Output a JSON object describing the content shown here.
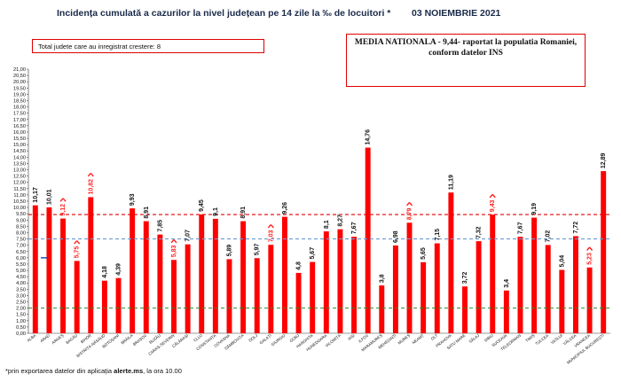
{
  "header": {
    "title": "Incidența cumulată a cazurilor la nivel județean pe 14 zile la ‰ de locuitori *",
    "date": "03 NOIEMBRIE 2021"
  },
  "info_box": {
    "text": "Total judete care au inregistrat crestere: 8"
  },
  "national_box": {
    "line1": "MEDIA NATIONALA - 9,44-  raportat la populatia Romaniei,",
    "line2": "conform datelor INS"
  },
  "footer": {
    "prefix": "*prin exportarea datelor din aplicația ",
    "bold": "alerte.ms",
    "suffix": ", la ora 10.00"
  },
  "colors": {
    "bar": "#ff0000",
    "increase_label": "#ff2020",
    "label": "#111111",
    "national_line": "#e00000",
    "blue_line": "#6a9bd1",
    "green_line": "#2e8b2e"
  },
  "chart_data": {
    "type": "bar",
    "categories": [
      "ALBA",
      "ARAD",
      "ARGEȘ",
      "BACĂU",
      "BIHOR",
      "BISTRIȚA-NĂSĂUD",
      "BOTOȘANI",
      "BRĂILA",
      "BRAȘOV",
      "BUZĂU",
      "CARAȘ-SEVERIN",
      "CĂLĂRAȘI",
      "CLUJ",
      "CONSTANȚA",
      "COVASNA",
      "DÂMBOVIȚA",
      "DOLJ",
      "GALAȚI",
      "GIURGIU",
      "GORJ",
      "HARGHITA",
      "HUNEDOARA",
      "IALOMIȚA",
      "IAȘI",
      "ILFOV",
      "MARAMUREȘ",
      "MEHEDINȚI",
      "MUREȘ",
      "NEAMȚ",
      "OLT",
      "PRAHOVA",
      "SATU MARE",
      "SĂLAJ",
      "SIBIU",
      "SUCEAVA",
      "TELEORMAN",
      "TIMIȘ",
      "TULCEA",
      "VASLUI",
      "VÂLCEA",
      "VRANCEA",
      "MUNICIPIUL BUCUREȘTI"
    ],
    "values": [
      10.17,
      10.01,
      9.12,
      5.75,
      10.82,
      4.18,
      4.39,
      9.93,
      8.91,
      7.85,
      5.83,
      7.07,
      9.45,
      9.1,
      5.89,
      8.91,
      5.97,
      7.03,
      9.26,
      4.8,
      5.67,
      8.1,
      8.27,
      7.67,
      14.76,
      3.8,
      6.98,
      8.79,
      5.65,
      7.15,
      11.19,
      3.72,
      7.32,
      9.43,
      3.4,
      7.67,
      9.19,
      7.02,
      5.04,
      7.72,
      5.23,
      12.89
    ],
    "value_labels": [
      "10,17",
      "10,01",
      "9,12",
      "5,75",
      "10,82",
      "4,18",
      "4,39",
      "9,93",
      "8,91",
      "7,85",
      "5,83",
      "7,07",
      "9,45",
      "9,1",
      "5,89",
      "8,91",
      "5,97",
      "7,03",
      "9,26",
      "4,8",
      "5,67",
      "8,1",
      "8,27",
      "7,67",
      "14,76",
      "3,8",
      "6,98",
      "8,79",
      "5,65",
      "7,15",
      "11,19",
      "3,72",
      "7,32",
      "9,43",
      "3,4",
      "7,67",
      "9,19",
      "7,02",
      "5,04",
      "7,72",
      "5,23",
      "12,89"
    ],
    "increase_indices": [
      2,
      3,
      4,
      10,
      17,
      27,
      33,
      40
    ],
    "ylim": [
      0,
      21
    ],
    "ytick_step": 0.5,
    "ytick_labels": [
      "0,00",
      "0,50",
      "1,00",
      "1,50",
      "2,00",
      "2,50",
      "3,00",
      "3,50",
      "4,00",
      "4,50",
      "5,00",
      "5,50",
      "6,00",
      "6,50",
      "7,00",
      "7,50",
      "8,00",
      "8,50",
      "9,00",
      "9,50",
      "10,00",
      "10,50",
      "11,00",
      "11,50",
      "12,00",
      "12,50",
      "13,00",
      "13,50",
      "14,00",
      "14,50",
      "15,00",
      "15,50",
      "16,00",
      "16,50",
      "17,00",
      "17,50",
      "18,00",
      "18,50",
      "19,00",
      "19,50",
      "20,00",
      "20,50",
      "21,00"
    ],
    "reference_lines": [
      {
        "value": 9.44,
        "color": "#e00000",
        "style": "dashed"
      },
      {
        "value": 7.5,
        "color": "#6a9bd1",
        "style": "dashed"
      },
      {
        "value": 2.0,
        "color": "#2e8b2e",
        "style": "dashed"
      }
    ],
    "title": "Incidența cumulată a cazurilor la nivel județean pe 14 zile la ‰ de locuitori *",
    "grid": false
  }
}
